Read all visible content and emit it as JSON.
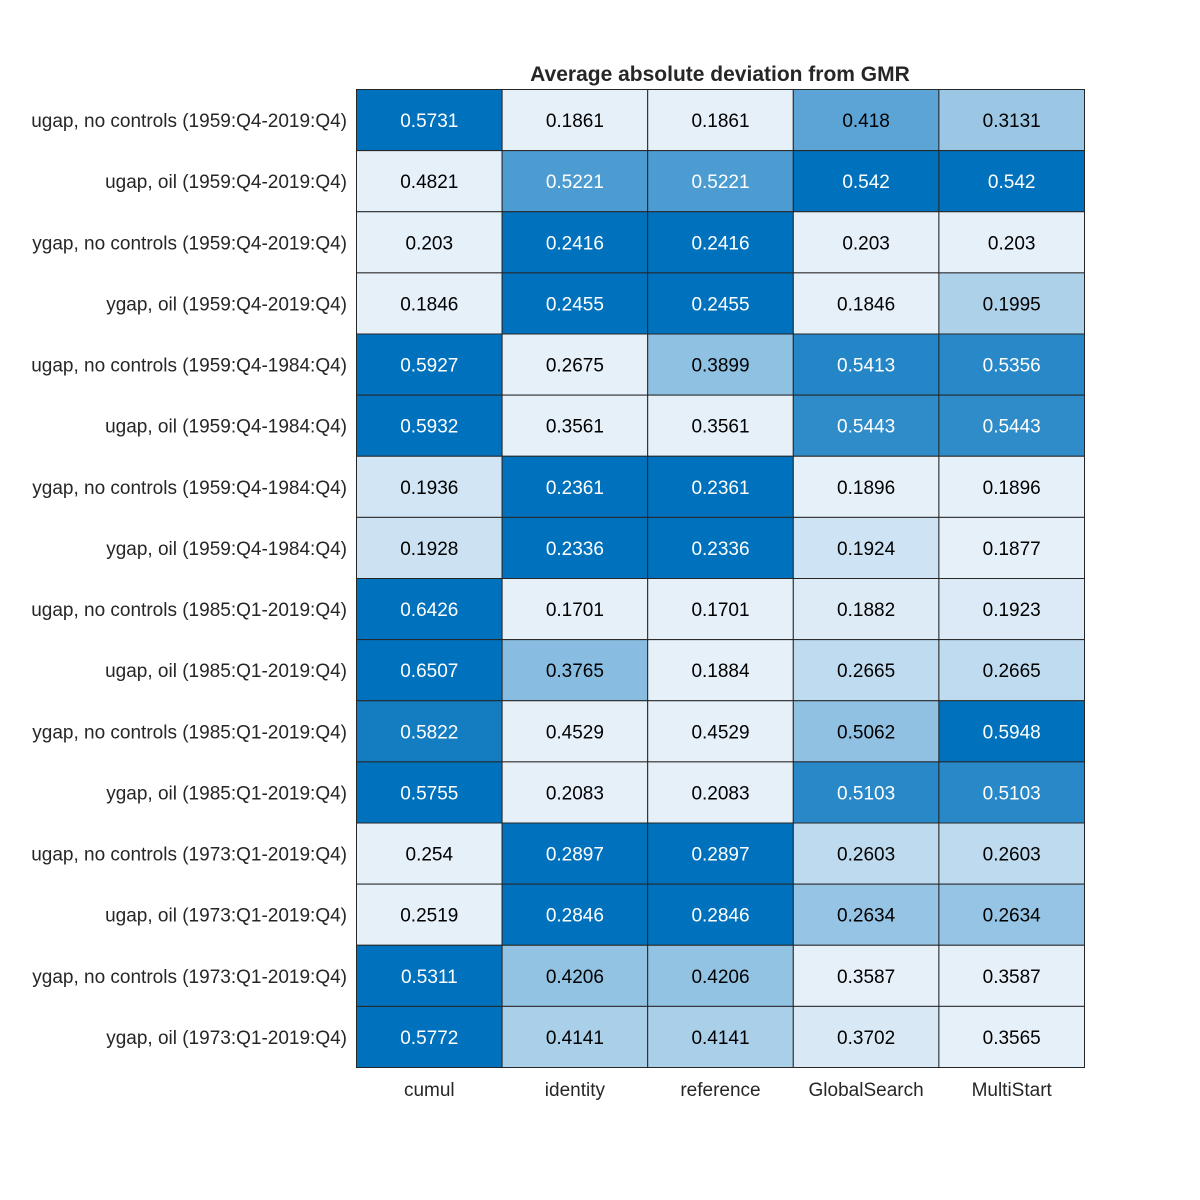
{
  "chart_data": {
    "type": "heatmap",
    "title": "Average absolute deviation from GMR",
    "columns": [
      "cumul",
      "identity",
      "reference",
      "GlobalSearch",
      "MultiStart"
    ],
    "rows": [
      "ugap, no controls (1959:Q4-2019:Q4)",
      "ugap, oil (1959:Q4-2019:Q4)",
      "ygap, no controls (1959:Q4-2019:Q4)",
      "ygap, oil (1959:Q4-2019:Q4)",
      "ugap, no controls (1959:Q4-1984:Q4)",
      "ugap, oil (1959:Q4-1984:Q4)",
      "ygap, no controls (1959:Q4-1984:Q4)",
      "ygap, oil (1959:Q4-1984:Q4)",
      "ugap, no controls (1985:Q1-2019:Q4)",
      "ugap, oil (1985:Q1-2019:Q4)",
      "ygap, no controls (1985:Q1-2019:Q4)",
      "ygap, oil (1985:Q1-2019:Q4)",
      "ugap, no controls (1973:Q1-2019:Q4)",
      "ugap, oil (1973:Q1-2019:Q4)",
      "ygap, no controls (1973:Q1-2019:Q4)",
      "ygap, oil (1973:Q1-2019:Q4)"
    ],
    "values": [
      [
        "0.5731",
        "0.1861",
        "0.1861",
        "0.418",
        "0.3131"
      ],
      [
        "0.4821",
        "0.5221",
        "0.5221",
        "0.542",
        "0.542"
      ],
      [
        "0.203",
        "0.2416",
        "0.2416",
        "0.203",
        "0.203"
      ],
      [
        "0.1846",
        "0.2455",
        "0.2455",
        "0.1846",
        "0.1995"
      ],
      [
        "0.5927",
        "0.2675",
        "0.3899",
        "0.5413",
        "0.5356"
      ],
      [
        "0.5932",
        "0.3561",
        "0.3561",
        "0.5443",
        "0.5443"
      ],
      [
        "0.1936",
        "0.2361",
        "0.2361",
        "0.1896",
        "0.1896"
      ],
      [
        "0.1928",
        "0.2336",
        "0.2336",
        "0.1924",
        "0.1877"
      ],
      [
        "0.6426",
        "0.1701",
        "0.1701",
        "0.1882",
        "0.1923"
      ],
      [
        "0.6507",
        "0.3765",
        "0.1884",
        "0.2665",
        "0.2665"
      ],
      [
        "0.5822",
        "0.4529",
        "0.4529",
        "0.5062",
        "0.5948"
      ],
      [
        "0.5755",
        "0.2083",
        "0.2083",
        "0.5103",
        "0.5103"
      ],
      [
        "0.254",
        "0.2897",
        "0.2897",
        "0.2603",
        "0.2603"
      ],
      [
        "0.2519",
        "0.2846",
        "0.2846",
        "0.2634",
        "0.2634"
      ],
      [
        "0.5311",
        "0.4206",
        "0.4206",
        "0.3587",
        "0.3587"
      ],
      [
        "0.5772",
        "0.4141",
        "0.4141",
        "0.3702",
        "0.3565"
      ]
    ],
    "colormap": {
      "low": "#e6f0f9",
      "high": "#0072bd"
    },
    "color_scaling": "per-row",
    "grid": true,
    "legend": "none"
  }
}
